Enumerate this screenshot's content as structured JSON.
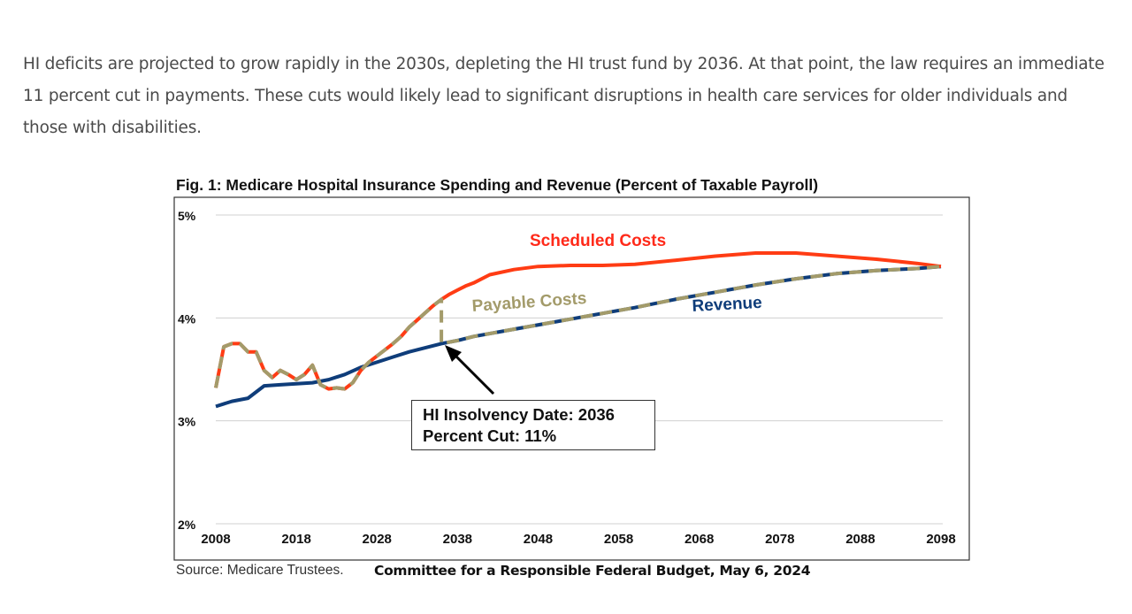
{
  "article": {
    "paragraph": "HI deficits are projected to grow rapidly in the 2030s, depleting the HI trust fund by 2036. At that point, the law requires an immediate 11 percent cut in payments. These cuts would likely lead to significant disruptions in health care services for older individuals and those with disabilities."
  },
  "chart_data": {
    "type": "line",
    "title": "Fig. 1: Medicare Hospital Insurance Spending and Revenue (Percent of Taxable Payroll)",
    "xlabel": "",
    "ylabel": "",
    "xlim": [
      2008,
      2098
    ],
    "ylim": [
      2,
      5
    ],
    "x_ticks": [
      "2008",
      "2018",
      "2028",
      "2038",
      "2048",
      "2058",
      "2068",
      "2078",
      "2088",
      "2098"
    ],
    "y_ticks": [
      "5%",
      "4%",
      "3%",
      "2%"
    ],
    "grid": "horizontal",
    "series": [
      {
        "name": "Scheduled Costs",
        "color": "#ff3c14",
        "style": "solid",
        "x": [
          2008,
          2009,
          2010,
          2011,
          2012,
          2013,
          2014,
          2015,
          2016,
          2017,
          2018,
          2019,
          2020,
          2021,
          2022,
          2023,
          2024,
          2025,
          2026,
          2027,
          2028,
          2029,
          2030,
          2031,
          2032,
          2033,
          2034,
          2035,
          2036,
          2037,
          2038,
          2039,
          2040,
          2042,
          2045,
          2048,
          2052,
          2056,
          2060,
          2065,
          2070,
          2075,
          2080,
          2085,
          2090,
          2095,
          2098
        ],
        "y": [
          3.32,
          3.72,
          3.75,
          3.75,
          3.67,
          3.67,
          3.49,
          3.42,
          3.49,
          3.45,
          3.4,
          3.45,
          3.54,
          3.35,
          3.31,
          3.32,
          3.31,
          3.37,
          3.49,
          3.57,
          3.63,
          3.69,
          3.75,
          3.82,
          3.91,
          3.98,
          4.05,
          4.12,
          4.18,
          4.23,
          4.27,
          4.31,
          4.34,
          4.42,
          4.47,
          4.5,
          4.51,
          4.51,
          4.52,
          4.56,
          4.6,
          4.63,
          4.63,
          4.6,
          4.57,
          4.53,
          4.5
        ]
      },
      {
        "name": "Revenue",
        "color": "#0f3d7a",
        "style": "solid",
        "x": [
          2008,
          2010,
          2012,
          2014,
          2016,
          2018,
          2020,
          2022,
          2024,
          2026,
          2028,
          2030,
          2032,
          2034,
          2036,
          2038,
          2040,
          2045,
          2050,
          2055,
          2060,
          2065,
          2070,
          2075,
          2080,
          2085,
          2090,
          2095,
          2098
        ],
        "y": [
          3.14,
          3.19,
          3.22,
          3.34,
          3.35,
          3.36,
          3.37,
          3.4,
          3.45,
          3.52,
          3.57,
          3.62,
          3.67,
          3.71,
          3.75,
          3.78,
          3.82,
          3.89,
          3.96,
          4.03,
          4.1,
          4.18,
          4.25,
          4.32,
          4.38,
          4.43,
          4.46,
          4.48,
          4.5
        ]
      },
      {
        "name": "Payable Costs",
        "color": "#a39b6a",
        "style": "dashed",
        "x": [
          2008,
          2009,
          2010,
          2011,
          2012,
          2013,
          2014,
          2015,
          2016,
          2017,
          2018,
          2019,
          2020,
          2021,
          2022,
          2023,
          2024,
          2025,
          2026,
          2027,
          2028,
          2029,
          2030,
          2031,
          2032,
          2033,
          2034,
          2035,
          2036,
          2036,
          2038,
          2040,
          2045,
          2050,
          2055,
          2060,
          2065,
          2070,
          2075,
          2080,
          2085,
          2090,
          2095,
          2098
        ],
        "y": [
          3.32,
          3.72,
          3.75,
          3.75,
          3.67,
          3.67,
          3.49,
          3.42,
          3.49,
          3.45,
          3.4,
          3.45,
          3.54,
          3.35,
          3.31,
          3.32,
          3.31,
          3.37,
          3.49,
          3.57,
          3.63,
          3.69,
          3.75,
          3.82,
          3.91,
          3.98,
          4.05,
          4.12,
          4.18,
          3.75,
          3.78,
          3.82,
          3.89,
          3.96,
          4.03,
          4.1,
          4.18,
          4.25,
          4.32,
          4.38,
          4.43,
          4.46,
          4.48,
          4.5
        ]
      }
    ],
    "annotations": {
      "scheduled_label": "Scheduled Costs",
      "payable_label": "Payable Costs",
      "revenue_label": "Revenue",
      "box_line1": "HI Insolvency Date: 2036",
      "box_line2": "Percent Cut: 11%",
      "arrow_target_year": 2036
    },
    "legend": "inline labels"
  },
  "footer": {
    "source": "Source: Medicare Trustees.",
    "credit": "Committee for a Responsible Federal Budget, May 6, 2024"
  }
}
